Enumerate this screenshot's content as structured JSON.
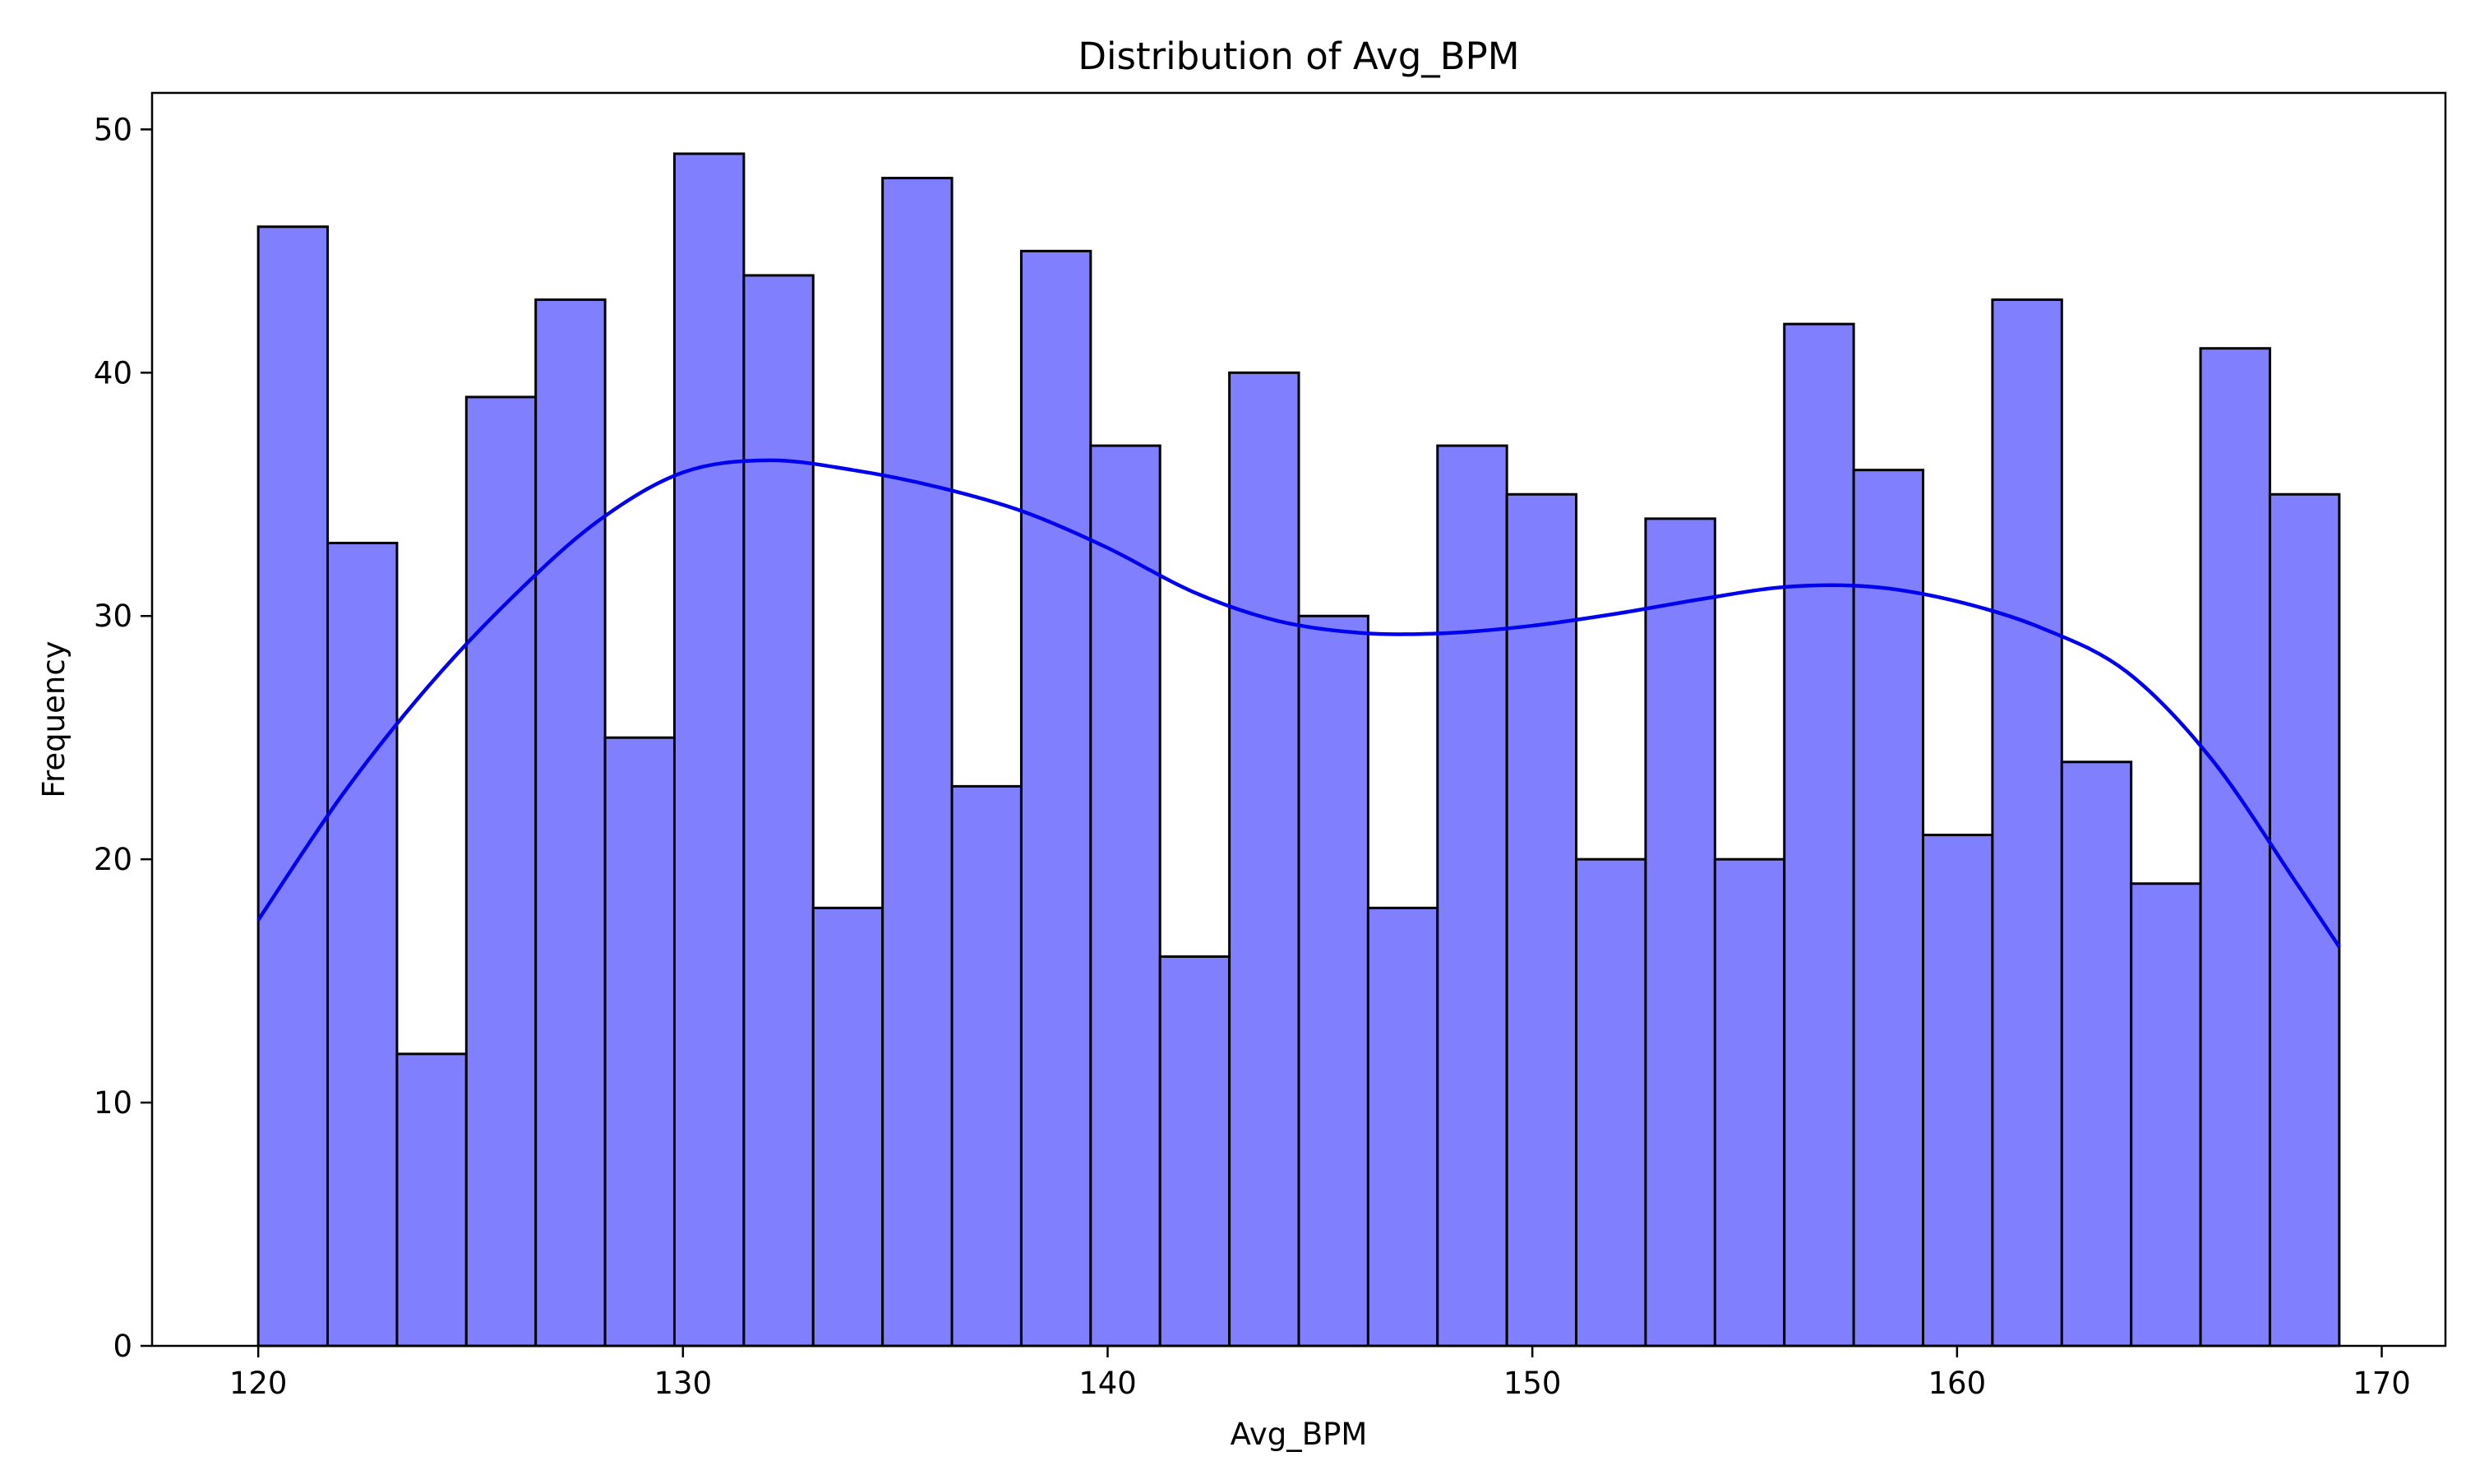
{
  "chart_data": {
    "type": "bar",
    "subtype": "histogram",
    "title": "Distribution of Avg_BPM",
    "xlabel": "Avg_BPM",
    "ylabel": "Frequency",
    "xlim": [
      117.5,
      171.5
    ],
    "ylim": [
      0,
      51.5
    ],
    "xticks": [
      120,
      130,
      140,
      150,
      160,
      170
    ],
    "yticks": [
      0,
      10,
      20,
      30,
      40,
      50
    ],
    "bin_start": 120,
    "bin_end": 169,
    "values": [
      46,
      33,
      12,
      39,
      43,
      25,
      49,
      44,
      18,
      48,
      23,
      45,
      37,
      16,
      40,
      30,
      18,
      37,
      35,
      20,
      34,
      20,
      42,
      36,
      21,
      43,
      24,
      19,
      41,
      35
    ],
    "kde": {
      "x": [
        120,
        122,
        124,
        126,
        128,
        130,
        132,
        134,
        136,
        138,
        140,
        142,
        144,
        146,
        148,
        150,
        152,
        154,
        156,
        158,
        160,
        162,
        164,
        166,
        168,
        169
      ],
      "y": [
        17.5,
        22.7,
        27.1,
        30.8,
        33.9,
        35.9,
        36.4,
        36.0,
        35.3,
        34.3,
        32.8,
        31.0,
        29.8,
        29.3,
        29.3,
        29.6,
        30.1,
        30.7,
        31.2,
        31.2,
        30.6,
        29.5,
        27.7,
        24.1,
        19.0,
        16.4
      ]
    },
    "colors": {
      "bar_fill": "#8080ff",
      "bar_edge": "#000000",
      "kde_line": "#0000ee"
    },
    "grid": false,
    "legend": false
  }
}
